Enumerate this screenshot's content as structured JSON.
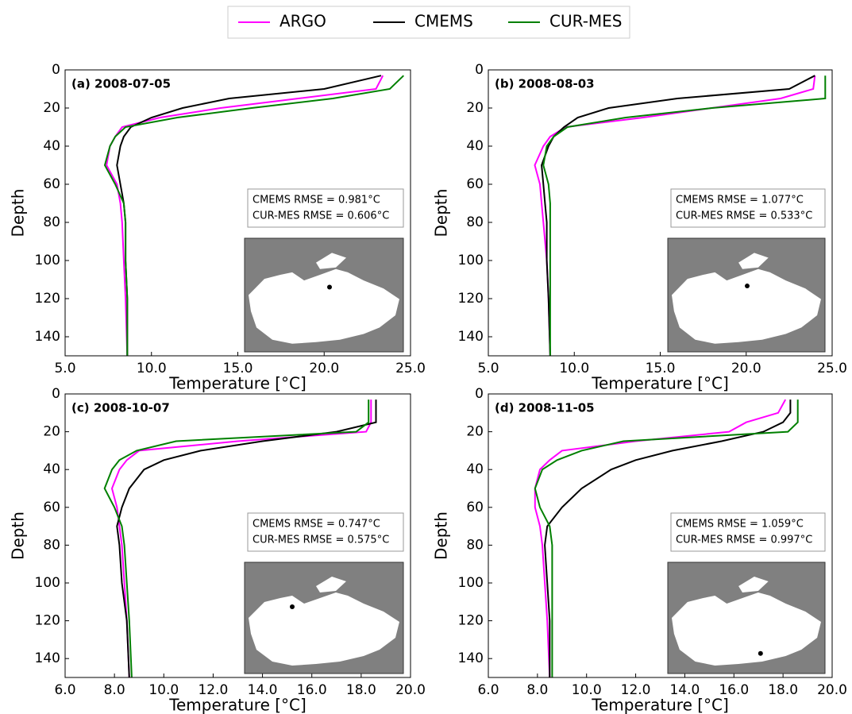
{
  "chart_data": [
    {
      "type": "line",
      "title": "(a) 2008-07-05",
      "xlabel": "Temperature [°C]",
      "ylabel": "Depth",
      "y": [
        3,
        10,
        15,
        20,
        25,
        30,
        35,
        40,
        50,
        60,
        70,
        80,
        100,
        120,
        150
      ],
      "series": [
        {
          "name": "ARGO",
          "color": "#ff00ff",
          "values": [
            23.4,
            23.0,
            18.5,
            14,
            10.5,
            8.3,
            7.9,
            7.6,
            7.4,
            8.0,
            8.2,
            8.3,
            8.4,
            8.5,
            8.6
          ]
        },
        {
          "name": "CMEMS",
          "color": "#000000",
          "values": [
            23.3,
            20,
            14.5,
            11.8,
            10.0,
            8.8,
            8.4,
            8.2,
            8.0,
            8.2,
            8.4,
            8.5,
            8.5,
            8.6,
            8.6
          ]
        },
        {
          "name": "CUR-MES",
          "color": "#008000",
          "values": [
            24.6,
            23.8,
            20.5,
            15.8,
            11.5,
            8.5,
            7.9,
            7.6,
            7.3,
            7.9,
            8.4,
            8.5,
            8.5,
            8.6,
            8.6
          ]
        }
      ],
      "xlim": [
        5,
        25
      ],
      "xticks": [
        {
          "value": 5,
          "label": "5.0"
        },
        {
          "value": 10,
          "label": "10.0"
        },
        {
          "value": 15,
          "label": "15.0"
        },
        {
          "value": 20,
          "label": "20.0"
        },
        {
          "value": 25,
          "label": "25.0"
        }
      ],
      "ylim": [
        0,
        150
      ],
      "y_inverted": true,
      "yticks": [
        0,
        20,
        40,
        60,
        80,
        100,
        120,
        140
      ],
      "annotations": [
        "CMEMS RMSE = 0.981°C",
        "CUR-MES RMSE = 0.606°C"
      ]
    },
    {
      "type": "line",
      "title": "(b) 2008-08-03",
      "xlabel": "Temperature [°C]",
      "ylabel": "Depth",
      "y": [
        3,
        10,
        15,
        20,
        25,
        30,
        35,
        40,
        50,
        60,
        70,
        80,
        100,
        120,
        150
      ],
      "series": [
        {
          "name": "ARGO",
          "color": "#ff00ff",
          "values": [
            24.0,
            23.9,
            22,
            18,
            14,
            9.5,
            8.6,
            8.2,
            7.7,
            8.0,
            8.1,
            8.2,
            8.4,
            8.5,
            8.6
          ]
        },
        {
          "name": "CMEMS",
          "color": "#000000",
          "values": [
            24.0,
            22.5,
            16.0,
            12.0,
            10.2,
            9.4,
            8.8,
            8.5,
            8.1,
            8.2,
            8.3,
            8.4,
            8.4,
            8.5,
            8.6
          ]
        },
        {
          "name": "CUR-MES",
          "color": "#008000",
          "values": [
            24.6,
            24.6,
            24.6,
            18,
            13,
            9.6,
            8.8,
            8.4,
            8.2,
            8.5,
            8.6,
            8.6,
            8.6,
            8.6,
            8.6
          ]
        }
      ],
      "xlim": [
        5,
        25
      ],
      "xticks": [
        {
          "value": 5,
          "label": "5.0"
        },
        {
          "value": 10,
          "label": "10.0"
        },
        {
          "value": 15,
          "label": "15.0"
        },
        {
          "value": 20,
          "label": "20.0"
        },
        {
          "value": 25,
          "label": "25.0"
        }
      ],
      "ylim": [
        0,
        150
      ],
      "y_inverted": true,
      "yticks": [
        0,
        20,
        40,
        60,
        80,
        100,
        120,
        140
      ],
      "annotations": [
        "CMEMS RMSE = 1.077°C",
        "CUR-MES RMSE = 0.533°C"
      ]
    },
    {
      "type": "line",
      "title": "(c) 2008-10-07",
      "xlabel": "Temperature [°C]",
      "ylabel": "Depth",
      "y": [
        3,
        10,
        15,
        20,
        25,
        30,
        35,
        40,
        50,
        60,
        70,
        80,
        100,
        120,
        150
      ],
      "series": [
        {
          "name": "ARGO",
          "color": "#ff00ff",
          "values": [
            18.4,
            18.4,
            18.4,
            18.2,
            13,
            9.0,
            8.5,
            8.2,
            7.9,
            8.1,
            8.2,
            8.3,
            8.4,
            8.5,
            8.6
          ]
        },
        {
          "name": "CMEMS",
          "color": "#000000",
          "values": [
            18.6,
            18.6,
            18.6,
            17.0,
            14,
            11.5,
            10.0,
            9.2,
            8.6,
            8.3,
            8.1,
            8.2,
            8.3,
            8.5,
            8.6
          ]
        },
        {
          "name": "CUR-MES",
          "color": "#008000",
          "values": [
            18.3,
            18.3,
            18.3,
            17.8,
            10.5,
            8.9,
            8.2,
            7.9,
            7.6,
            8.0,
            8.3,
            8.4,
            8.5,
            8.6,
            8.7
          ]
        }
      ],
      "xlim": [
        6,
        20
      ],
      "xticks": [
        {
          "value": 6,
          "label": "6.0"
        },
        {
          "value": 8,
          "label": "8.0"
        },
        {
          "value": 10,
          "label": "10.0"
        },
        {
          "value": 12,
          "label": "12.0"
        },
        {
          "value": 14,
          "label": "14.0"
        },
        {
          "value": 16,
          "label": "16.0"
        },
        {
          "value": 18,
          "label": "18.0"
        },
        {
          "value": 20,
          "label": "20.0"
        }
      ],
      "ylim": [
        0,
        150
      ],
      "y_inverted": true,
      "yticks": [
        0,
        20,
        40,
        60,
        80,
        100,
        120,
        140
      ],
      "annotations": [
        "CMEMS RMSE = 0.747°C",
        "CUR-MES RMSE = 0.575°C"
      ]
    },
    {
      "type": "line",
      "title": "(d) 2008-11-05",
      "xlabel": "Temperature [°C]",
      "ylabel": "Depth",
      "y": [
        3,
        10,
        15,
        20,
        25,
        30,
        35,
        40,
        50,
        60,
        70,
        80,
        100,
        120,
        150
      ],
      "series": [
        {
          "name": "ARGO",
          "color": "#ff00ff",
          "values": [
            18.1,
            17.8,
            16.5,
            15.8,
            12.0,
            9.0,
            8.5,
            8.1,
            7.9,
            7.9,
            8.1,
            8.2,
            8.3,
            8.4,
            8.5
          ]
        },
        {
          "name": "CMEMS",
          "color": "#000000",
          "values": [
            18.3,
            18.3,
            18.0,
            17.2,
            15.5,
            13.5,
            12.0,
            11.0,
            9.8,
            9.0,
            8.4,
            8.3,
            8.4,
            8.5,
            8.5
          ]
        },
        {
          "name": "CUR-MES",
          "color": "#008000",
          "values": [
            18.6,
            18.6,
            18.6,
            18.2,
            11.5,
            9.8,
            8.8,
            8.2,
            7.9,
            8.1,
            8.5,
            8.6,
            8.6,
            8.6,
            8.6
          ]
        }
      ],
      "xlim": [
        6,
        20
      ],
      "xticks": [
        {
          "value": 6,
          "label": "6.0"
        },
        {
          "value": 8,
          "label": "8.0"
        },
        {
          "value": 10,
          "label": "10.0"
        },
        {
          "value": 12,
          "label": "12.0"
        },
        {
          "value": 14,
          "label": "14.0"
        },
        {
          "value": 16,
          "label": "16.0"
        },
        {
          "value": 18,
          "label": "18.0"
        },
        {
          "value": 20,
          "label": "20.0"
        }
      ],
      "ylim": [
        0,
        150
      ],
      "y_inverted": true,
      "yticks": [
        0,
        20,
        40,
        60,
        80,
        100,
        120,
        140
      ],
      "annotations": [
        "CMEMS RMSE = 1.059°C",
        "CUR-MES RMSE = 0.997°C"
      ]
    }
  ]
}
